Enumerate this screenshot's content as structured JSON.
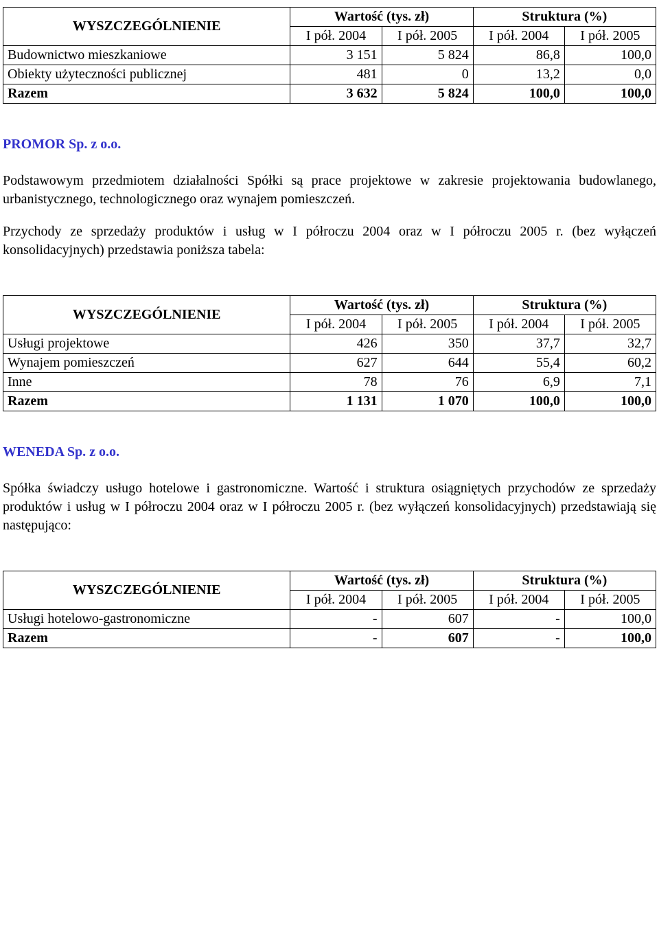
{
  "table1": {
    "head": {
      "wyszcz": "WYSZCZEGÓLNIENIE",
      "val_group": "Wartość (tys. zł)",
      "str_group": "Struktura (%)",
      "c1": "I pół. 2004",
      "c2": "I pół. 2005",
      "c3": "I pół. 2004",
      "c4": "I pół. 2005"
    },
    "rows": [
      {
        "label": "Budownictwo mieszkaniowe",
        "v1": "3 151",
        "v2": "5 824",
        "s1": "86,8",
        "s2": "100,0"
      },
      {
        "label": "Obiekty użyteczności publicznej",
        "v1": "481",
        "v2": "0",
        "s1": "13,2",
        "s2": "0,0"
      },
      {
        "label": "Razem",
        "v1": "3 632",
        "v2": "5 824",
        "s1": "100,0",
        "s2": "100,0",
        "bold": true
      }
    ]
  },
  "promor": {
    "title": "PROMOR Sp. z o.o.",
    "p1": "Podstawowym przedmiotem działalności Spółki są prace projektowe w zakresie projektowania budowlanego, urbanistycznego, technologicznego oraz wynajem pomieszczeń.",
    "p2": "Przychody ze sprzedaży produktów i usług w I półroczu 2004 oraz w I półroczu 2005 r. (bez wyłączeń konsolidacyjnych) przedstawia poniższa tabela:"
  },
  "table2": {
    "head": {
      "wyszcz": "WYSZCZEGÓLNIENIE",
      "val_group": "Wartość (tys. zł)",
      "str_group": "Struktura (%)",
      "c1": "I pół. 2004",
      "c2": "I pół. 2005",
      "c3": "I pół. 2004",
      "c4": "I pół. 2005"
    },
    "rows": [
      {
        "label": "Usługi projektowe",
        "v1": "426",
        "v2": "350",
        "s1": "37,7",
        "s2": "32,7"
      },
      {
        "label": "Wynajem pomieszczeń",
        "v1": "627",
        "v2": "644",
        "s1": "55,4",
        "s2": "60,2"
      },
      {
        "label": "Inne",
        "v1": "78",
        "v2": "76",
        "s1": "6,9",
        "s2": "7,1"
      },
      {
        "label": "Razem",
        "v1": "1 131",
        "v2": "1 070",
        "s1": "100,0",
        "s2": "100,0",
        "bold": true
      }
    ]
  },
  "weneda": {
    "title": "WENEDA Sp. z o.o.",
    "p1": "Spółka świadczy usługo hotelowe i gastronomiczne. Wartość i struktura osiągniętych przychodów ze sprzedaży produktów i usług w I półroczu  2004 oraz w I półroczu  2005 r. (bez wyłączeń konsolidacyjnych) przedstawiają się następująco:"
  },
  "table3": {
    "head": {
      "wyszcz": "WYSZCZEGÓLNIENIE",
      "val_group": "Wartość (tys. zł)",
      "str_group": "Struktura (%)",
      "c1": "I pół. 2004",
      "c2": "I pół. 2005",
      "c3": "I pół. 2004",
      "c4": "I pół. 2005"
    },
    "rows": [
      {
        "label": "Usługi hotelowo-gastronomiczne",
        "v1": "-",
        "v2": "607",
        "s1": "-",
        "s2": "100,0"
      },
      {
        "label": "Razem",
        "v1": "-",
        "v2": "607",
        "s1": "-",
        "s2": "100,0",
        "bold": true
      }
    ]
  }
}
